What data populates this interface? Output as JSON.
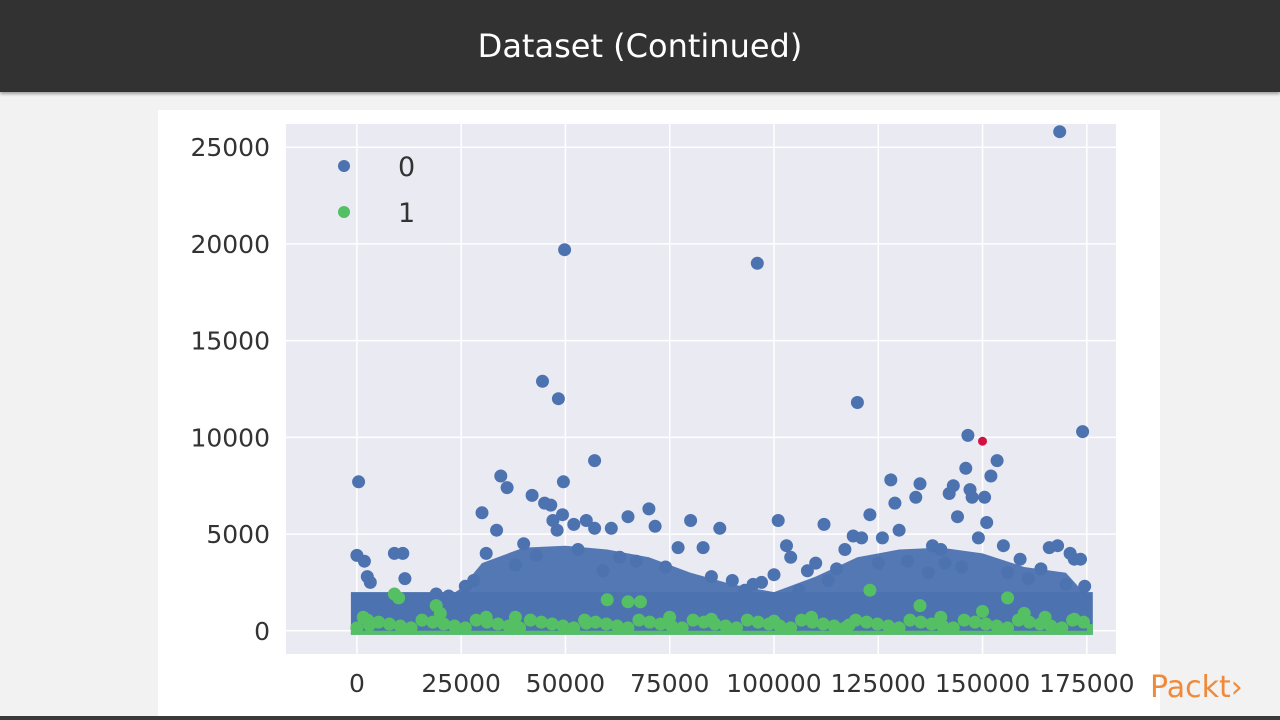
{
  "slide": {
    "title": "Dataset (Continued)",
    "brand": "Packt›"
  },
  "colors": {
    "class0": "#4c72b0",
    "class1": "#55bf64",
    "highlight": "#d11242",
    "plot_bg": "#eaeaf2",
    "grid": "#ffffff",
    "brand": "#f08a3b"
  },
  "chart_data": {
    "type": "scatter",
    "xlim": [
      -17000,
      182000
    ],
    "ylim": [
      -1200,
      26200
    ],
    "xticks": [
      0,
      25000,
      50000,
      75000,
      100000,
      125000,
      150000,
      175000
    ],
    "yticks": [
      0,
      5000,
      10000,
      15000,
      20000,
      25000
    ],
    "xtick_labels": [
      "0",
      "25000",
      "50000",
      "75000",
      "100000",
      "125000",
      "150000",
      "175000"
    ],
    "ytick_labels": [
      "0",
      "5000",
      "10000",
      "15000",
      "20000",
      "25000"
    ],
    "grid": true,
    "legend_position": "top-left",
    "series": [
      {
        "name": "0",
        "color": "#4c72b0",
        "points": [
          [
            400,
            7700
          ],
          [
            0,
            3900
          ],
          [
            1800,
            3600
          ],
          [
            2500,
            2800
          ],
          [
            3200,
            2500
          ],
          [
            9000,
            4000
          ],
          [
            11000,
            4000
          ],
          [
            11500,
            2700
          ],
          [
            19000,
            1900
          ],
          [
            30000,
            6100
          ],
          [
            31000,
            4000
          ],
          [
            33500,
            5200
          ],
          [
            34500,
            8000
          ],
          [
            36000,
            7400
          ],
          [
            40000,
            4500
          ],
          [
            42000,
            7000
          ],
          [
            45000,
            6600
          ],
          [
            46500,
            6500
          ],
          [
            44500,
            12900
          ],
          [
            47000,
            5700
          ],
          [
            48000,
            5200
          ],
          [
            48300,
            12000
          ],
          [
            49500,
            7700
          ],
          [
            49300,
            6000
          ],
          [
            49800,
            19700
          ],
          [
            52000,
            5500
          ],
          [
            55000,
            5700
          ],
          [
            57000,
            8800
          ],
          [
            57000,
            5300
          ],
          [
            61000,
            5300
          ],
          [
            65000,
            5900
          ],
          [
            70000,
            6300
          ],
          [
            71500,
            5400
          ],
          [
            80000,
            5700
          ],
          [
            83000,
            4300
          ],
          [
            87000,
            5300
          ],
          [
            95000,
            2400
          ],
          [
            96000,
            19000
          ],
          [
            100000,
            2900
          ],
          [
            101000,
            5700
          ],
          [
            103000,
            4400
          ],
          [
            104000,
            3800
          ],
          [
            110000,
            3500
          ],
          [
            112000,
            5500
          ],
          [
            115000,
            3200
          ],
          [
            119000,
            4900
          ],
          [
            120000,
            11800
          ],
          [
            121000,
            4800
          ],
          [
            123000,
            6000
          ],
          [
            126000,
            4800
          ],
          [
            128000,
            7800
          ],
          [
            129000,
            6600
          ],
          [
            130000,
            5200
          ],
          [
            134000,
            6900
          ],
          [
            135000,
            7600
          ],
          [
            138000,
            4400
          ],
          [
            140000,
            4200
          ],
          [
            142000,
            7100
          ],
          [
            143000,
            7500
          ],
          [
            144000,
            5900
          ],
          [
            146000,
            8400
          ],
          [
            147000,
            7300
          ],
          [
            146500,
            10100
          ],
          [
            147500,
            6900
          ],
          [
            149000,
            4800
          ],
          [
            150500,
            6900
          ],
          [
            151000,
            5600
          ],
          [
            152000,
            8000
          ],
          [
            153500,
            8800
          ],
          [
            155000,
            4400
          ],
          [
            159000,
            3700
          ],
          [
            164000,
            3200
          ],
          [
            166000,
            4300
          ],
          [
            168000,
            4400
          ],
          [
            168500,
            25800
          ],
          [
            171000,
            4000
          ],
          [
            172000,
            3700
          ],
          [
            173500,
            3700
          ],
          [
            174000,
            10300
          ],
          [
            174500,
            2300
          ],
          [
            5000,
            1500
          ],
          [
            8000,
            1200
          ],
          [
            14000,
            1400
          ],
          [
            22000,
            1800
          ],
          [
            26000,
            2300
          ],
          [
            28000,
            2600
          ],
          [
            38000,
            3400
          ],
          [
            43000,
            3900
          ],
          [
            53000,
            4200
          ],
          [
            59000,
            3100
          ],
          [
            63000,
            3800
          ],
          [
            67000,
            3600
          ],
          [
            74000,
            3300
          ],
          [
            77000,
            4300
          ],
          [
            85000,
            2800
          ],
          [
            90000,
            2600
          ],
          [
            93000,
            2100
          ],
          [
            97000,
            2500
          ],
          [
            106000,
            2100
          ],
          [
            108000,
            3100
          ],
          [
            113000,
            2600
          ],
          [
            117000,
            4200
          ],
          [
            125000,
            3500
          ],
          [
            132000,
            3600
          ],
          [
            137000,
            3000
          ],
          [
            141000,
            3500
          ],
          [
            145000,
            3300
          ],
          [
            156000,
            3000
          ],
          [
            161000,
            2700
          ],
          [
            170000,
            2400
          ]
        ]
      },
      {
        "name": "1",
        "color": "#55bf64",
        "points": [
          [
            9000,
            1900
          ],
          [
            10000,
            1700
          ],
          [
            19000,
            1300
          ],
          [
            20000,
            900
          ],
          [
            123000,
            2100
          ],
          [
            60000,
            1600
          ],
          [
            65000,
            1500
          ],
          [
            68000,
            1500
          ],
          [
            135000,
            1300
          ],
          [
            150000,
            1000
          ],
          [
            156000,
            1700
          ],
          [
            160000,
            900
          ],
          [
            1500,
            700
          ],
          [
            3000,
            300
          ],
          [
            31000,
            700
          ],
          [
            38000,
            700
          ],
          [
            55000,
            400
          ],
          [
            75000,
            700
          ],
          [
            85000,
            600
          ],
          [
            100000,
            500
          ],
          [
            109000,
            700
          ],
          [
            118000,
            300
          ],
          [
            140000,
            700
          ],
          [
            165000,
            700
          ],
          [
            172000,
            600
          ]
        ]
      },
      {
        "name": "",
        "color": "#d11242",
        "points": [
          [
            150000,
            9800
          ]
        ]
      }
    ],
    "bands": [
      {
        "series": "0",
        "x_range": [
          0,
          175000
        ],
        "y_range": [
          0,
          2000
        ]
      },
      {
        "series": "1",
        "x_range": [
          0,
          175000
        ],
        "y_range": [
          0,
          350
        ]
      }
    ]
  }
}
